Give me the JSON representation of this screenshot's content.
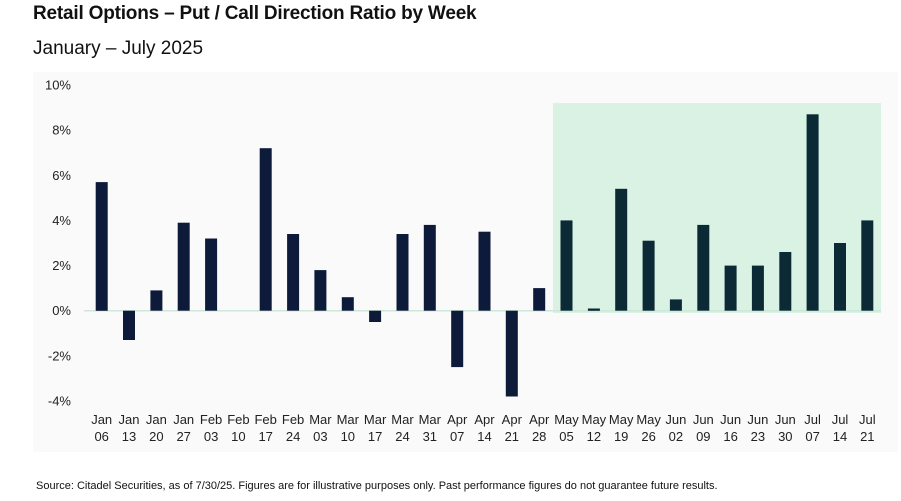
{
  "title": "Retail Options – Put / Call Direction Ratio by Week",
  "subtitle": "January – July 2025",
  "source": "Source: Citadel Securities, as of 7/30/25. Figures are for illustrative purposes only. Past performance figures do not guarantee future results.",
  "colors": {
    "bar": "#0e1a3a",
    "bar_highlight": "#0c2a35",
    "highlight_fill": "#d9f2e3",
    "zero_line": "#cfe6da",
    "panel_bg": "#fafafa"
  },
  "chart_data": {
    "type": "bar",
    "title": "Retail Options – Put / Call Direction Ratio by Week",
    "subtitle": "January – July 2025",
    "xlabel": "",
    "ylabel": "",
    "ylim": [
      -4,
      10
    ],
    "yticks": [
      "10%",
      "8%",
      "6%",
      "4%",
      "2%",
      "0%",
      "-2%",
      "-4%"
    ],
    "ytick_values": [
      10,
      8,
      6,
      4,
      2,
      0,
      -2,
      -4
    ],
    "grid": false,
    "categories": [
      {
        "month": "Jan",
        "day": "06"
      },
      {
        "month": "Jan",
        "day": "13"
      },
      {
        "month": "Jan",
        "day": "20"
      },
      {
        "month": "Jan",
        "day": "27"
      },
      {
        "month": "Feb",
        "day": "03"
      },
      {
        "month": "Feb",
        "day": "10"
      },
      {
        "month": "Feb",
        "day": "17"
      },
      {
        "month": "Feb",
        "day": "24"
      },
      {
        "month": "Mar",
        "day": "03"
      },
      {
        "month": "Mar",
        "day": "10"
      },
      {
        "month": "Mar",
        "day": "17"
      },
      {
        "month": "Mar",
        "day": "24"
      },
      {
        "month": "Mar",
        "day": "31"
      },
      {
        "month": "Apr",
        "day": "07"
      },
      {
        "month": "Apr",
        "day": "14"
      },
      {
        "month": "Apr",
        "day": "21"
      },
      {
        "month": "Apr",
        "day": "28"
      },
      {
        "month": "May",
        "day": "05"
      },
      {
        "month": "May",
        "day": "12"
      },
      {
        "month": "May",
        "day": "19"
      },
      {
        "month": "May",
        "day": "26"
      },
      {
        "month": "Jun",
        "day": "02"
      },
      {
        "month": "Jun",
        "day": "09"
      },
      {
        "month": "Jun",
        "day": "16"
      },
      {
        "month": "Jun",
        "day": "23"
      },
      {
        "month": "Jun",
        "day": "30"
      },
      {
        "month": "Jul",
        "day": "07"
      },
      {
        "month": "Jul",
        "day": "14"
      },
      {
        "month": "Jul",
        "day": "21"
      }
    ],
    "values": [
      5.7,
      -1.3,
      0.9,
      3.9,
      3.2,
      0.0,
      7.2,
      3.4,
      1.8,
      0.6,
      -0.5,
      3.4,
      3.8,
      -2.5,
      3.5,
      -3.8,
      1.0,
      4.0,
      0.1,
      5.4,
      3.1,
      0.5,
      3.8,
      2.0,
      2.0,
      2.6,
      8.7,
      3.0,
      4.0
    ],
    "highlight_range": {
      "from": "May 05",
      "to": "Jul 21"
    }
  }
}
